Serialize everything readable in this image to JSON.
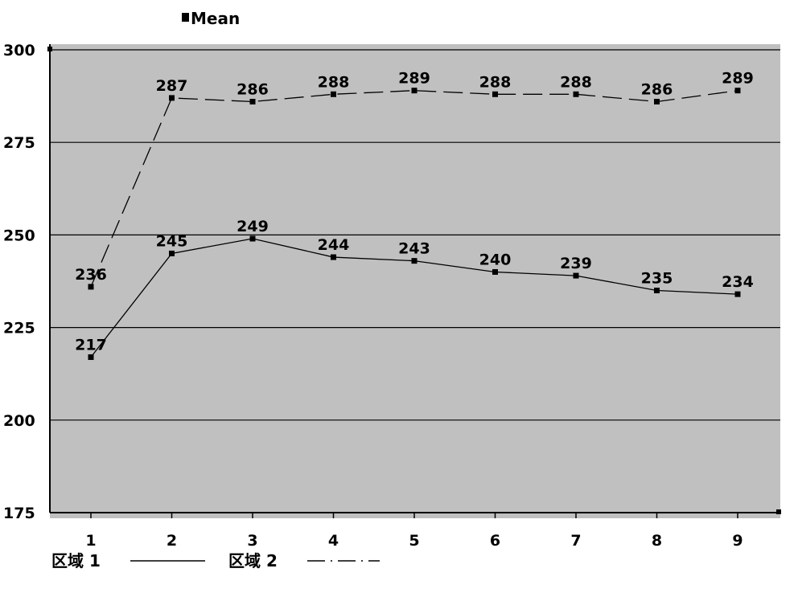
{
  "chart_data": {
    "type": "line",
    "title": "",
    "legend_top": "Mean",
    "xlabel": "",
    "ylabel": "",
    "categories": [
      "1",
      "2",
      "3",
      "4",
      "5",
      "6",
      "7",
      "8",
      "9"
    ],
    "ylim": [
      175,
      300
    ],
    "yticks": [
      "300",
      "275",
      "250",
      "225",
      "200",
      "175"
    ],
    "grid": true,
    "background": "#c0c0c0",
    "series": [
      {
        "name": "区域 1",
        "style": "solid",
        "values": [
          217,
          245,
          249,
          244,
          243,
          240,
          239,
          235,
          234
        ]
      },
      {
        "name": "区域 2",
        "style": "dashed",
        "values": [
          236,
          287,
          286,
          288,
          289,
          288,
          288,
          286,
          289
        ]
      }
    ],
    "legend_bottom": [
      "区域 1",
      "区域 2"
    ]
  }
}
